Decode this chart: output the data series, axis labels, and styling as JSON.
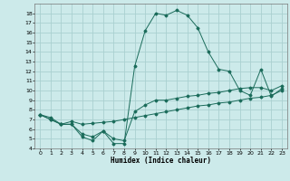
{
  "title": "",
  "xlabel": "Humidex (Indice chaleur)",
  "ylabel": "",
  "background_color": "#cceaea",
  "grid_color": "#aad0d0",
  "line_color": "#1a6b5a",
  "xlim": [
    -0.5,
    23.5
  ],
  "ylim": [
    4,
    19
  ],
  "xticks": [
    0,
    1,
    2,
    3,
    4,
    5,
    6,
    7,
    8,
    9,
    10,
    11,
    12,
    13,
    14,
    15,
    16,
    17,
    18,
    19,
    20,
    21,
    22,
    23
  ],
  "yticks": [
    4,
    5,
    6,
    7,
    8,
    9,
    10,
    11,
    12,
    13,
    14,
    15,
    16,
    17,
    18
  ],
  "line1_x": [
    0,
    1,
    2,
    3,
    4,
    5,
    6,
    7,
    8,
    9,
    10,
    11,
    12,
    13,
    14,
    15,
    16,
    17,
    18,
    19,
    20,
    21,
    22,
    23
  ],
  "line1_y": [
    7.5,
    7.0,
    6.5,
    6.5,
    5.2,
    4.8,
    5.8,
    4.5,
    4.5,
    12.5,
    16.2,
    18.0,
    17.8,
    18.3,
    17.8,
    16.5,
    14.0,
    12.2,
    12.0,
    10.0,
    9.5,
    12.2,
    9.4,
    10.2
  ],
  "line2_x": [
    0,
    1,
    2,
    3,
    4,
    5,
    6,
    7,
    8,
    9,
    10,
    11,
    12,
    13,
    14,
    15,
    16,
    17,
    18,
    19,
    20,
    21,
    22,
    23
  ],
  "line2_y": [
    7.5,
    7.2,
    6.5,
    6.8,
    6.5,
    6.6,
    6.7,
    6.8,
    7.0,
    7.2,
    7.4,
    7.6,
    7.8,
    8.0,
    8.2,
    8.4,
    8.5,
    8.7,
    8.8,
    9.0,
    9.2,
    9.3,
    9.5,
    10.0
  ],
  "line3_x": [
    0,
    1,
    2,
    3,
    4,
    5,
    6,
    7,
    8,
    9,
    10,
    11,
    12,
    13,
    14,
    15,
    16,
    17,
    18,
    19,
    20,
    21,
    22,
    23
  ],
  "line3_y": [
    7.5,
    7.0,
    6.5,
    6.5,
    5.5,
    5.2,
    5.8,
    5.0,
    4.8,
    7.8,
    8.5,
    9.0,
    9.0,
    9.2,
    9.4,
    9.5,
    9.7,
    9.8,
    10.0,
    10.2,
    10.3,
    10.3,
    10.0,
    10.5
  ]
}
